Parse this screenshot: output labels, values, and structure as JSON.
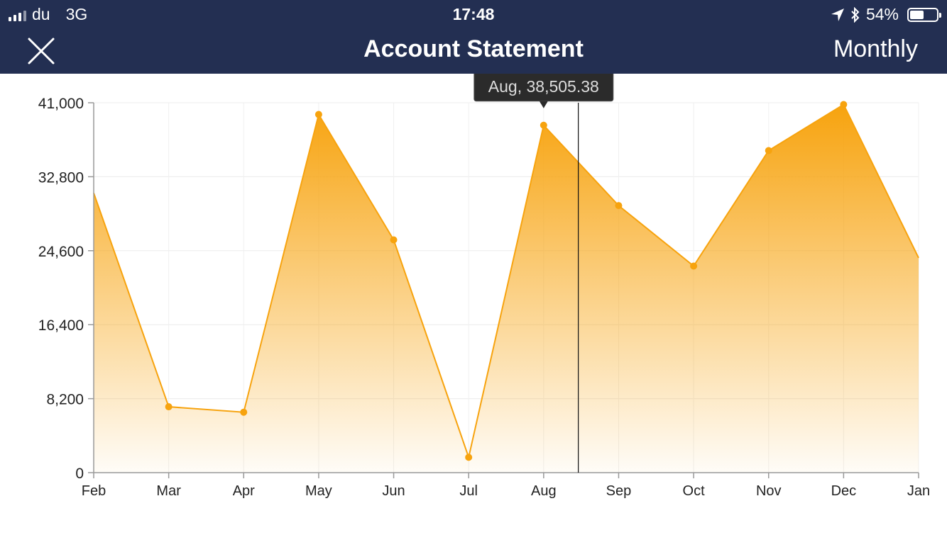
{
  "status_bar": {
    "carrier": "du",
    "network": "3G",
    "time": "17:48",
    "battery_percent": "54%",
    "battery_level": 0.54
  },
  "nav": {
    "title": "Account Statement",
    "period_label": "Monthly",
    "close_icon": "close-icon"
  },
  "colors": {
    "header_bg": "#232f52",
    "series": "#f7a30e",
    "tooltip_bg": "#2b2b2b"
  },
  "chart_data": {
    "type": "area",
    "categories": [
      "Feb",
      "Mar",
      "Apr",
      "May",
      "Jun",
      "Jul",
      "Aug",
      "Sep",
      "Oct",
      "Nov",
      "Dec",
      "Jan"
    ],
    "values": [
      31000,
      7300,
      6700,
      39700,
      25800,
      1700,
      38505.38,
      29600,
      22900,
      35700,
      40800,
      23800
    ],
    "ylim": [
      0,
      41000
    ],
    "y_ticks": [
      "0",
      "8,200",
      "16,400",
      "24,600",
      "32,800",
      "41,000"
    ],
    "grid": true,
    "highlighted_category": "Aug",
    "tooltip": "Aug, 38,505.38"
  }
}
